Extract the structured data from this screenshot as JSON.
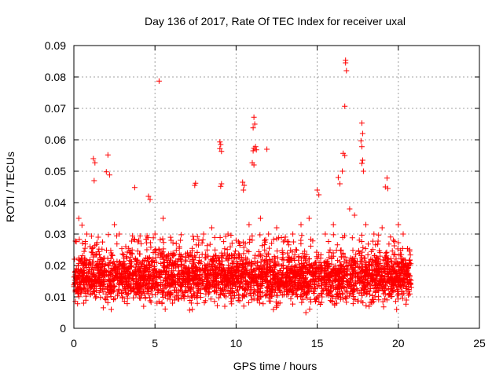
{
  "chart_data": {
    "type": "scatter",
    "title": "Day 136 of 2017, Rate Of TEC Index for receiver uxal",
    "xlabel": "GPS time / hours",
    "ylabel": "ROTI / TECUs",
    "xlim": [
      0,
      25
    ],
    "ylim": [
      0,
      0.09
    ],
    "x_ticks": [
      "0",
      "5",
      "10",
      "15",
      "20",
      "25"
    ],
    "y_ticks": [
      "0",
      "0.01",
      "0.02",
      "0.03",
      "0.04",
      "0.05",
      "0.06",
      "0.07",
      "0.08",
      "0.09"
    ],
    "grid": true,
    "marker": "+",
    "color": "#ff0000",
    "data_x_range": [
      0,
      20.8
    ],
    "typical_band": [
      0.005,
      0.03
    ],
    "series": [
      {
        "points": [
          [
            5.25,
            0.0787
          ],
          [
            16.75,
            0.0853
          ],
          [
            16.75,
            0.0845
          ],
          [
            16.8,
            0.082
          ],
          [
            16.7,
            0.0707
          ],
          [
            11.1,
            0.0672
          ],
          [
            11.15,
            0.065
          ],
          [
            11.05,
            0.0638
          ],
          [
            17.75,
            0.0653
          ],
          [
            17.8,
            0.062
          ],
          [
            17.7,
            0.0597
          ],
          [
            17.75,
            0.0578
          ],
          [
            9.0,
            0.0593
          ],
          [
            9.05,
            0.0585
          ],
          [
            9.0,
            0.0572
          ],
          [
            9.1,
            0.0563
          ],
          [
            11.2,
            0.0578
          ],
          [
            11.1,
            0.0573
          ],
          [
            11.25,
            0.0568
          ],
          [
            11.05,
            0.0565
          ],
          [
            11.9,
            0.057
          ],
          [
            2.1,
            0.0552
          ],
          [
            2.0,
            0.0498
          ],
          [
            2.2,
            0.0488
          ],
          [
            1.2,
            0.054
          ],
          [
            1.3,
            0.0527
          ],
          [
            1.25,
            0.047
          ],
          [
            16.6,
            0.0557
          ],
          [
            16.7,
            0.055
          ],
          [
            16.55,
            0.05
          ],
          [
            11.0,
            0.0527
          ],
          [
            11.1,
            0.052
          ],
          [
            17.8,
            0.0535
          ],
          [
            17.75,
            0.0525
          ],
          [
            17.85,
            0.05
          ],
          [
            19.3,
            0.0478
          ],
          [
            19.2,
            0.045
          ],
          [
            19.35,
            0.0445
          ],
          [
            7.5,
            0.0462
          ],
          [
            7.45,
            0.0455
          ],
          [
            10.4,
            0.0465
          ],
          [
            10.5,
            0.0455
          ],
          [
            10.45,
            0.044
          ],
          [
            3.75,
            0.0448
          ],
          [
            4.6,
            0.042
          ],
          [
            4.7,
            0.041
          ],
          [
            9.1,
            0.046
          ],
          [
            9.05,
            0.0452
          ],
          [
            15.0,
            0.044
          ],
          [
            15.1,
            0.0425
          ],
          [
            16.3,
            0.048
          ],
          [
            16.4,
            0.046
          ],
          [
            0.3,
            0.035
          ],
          [
            0.5,
            0.0328
          ],
          [
            0.8,
            0.03
          ],
          [
            1.0,
            0.026
          ],
          [
            1.5,
            0.029
          ],
          [
            2.5,
            0.033
          ],
          [
            2.8,
            0.03
          ],
          [
            3.2,
            0.026
          ],
          [
            3.5,
            0.024
          ],
          [
            4.0,
            0.028
          ],
          [
            4.5,
            0.025
          ],
          [
            5.0,
            0.03
          ],
          [
            5.5,
            0.035
          ],
          [
            6.0,
            0.028
          ],
          [
            6.5,
            0.026
          ],
          [
            7.0,
            0.024
          ],
          [
            7.7,
            0.028
          ],
          [
            8.0,
            0.03
          ],
          [
            8.5,
            0.032
          ],
          [
            9.5,
            0.03
          ],
          [
            10.0,
            0.028
          ],
          [
            10.8,
            0.033
          ],
          [
            11.5,
            0.035
          ],
          [
            12.0,
            0.03
          ],
          [
            12.5,
            0.032
          ],
          [
            13.0,
            0.028
          ],
          [
            13.5,
            0.03
          ],
          [
            14.0,
            0.033
          ],
          [
            14.5,
            0.035
          ],
          [
            15.5,
            0.03
          ],
          [
            16.0,
            0.033
          ],
          [
            17.0,
            0.038
          ],
          [
            17.3,
            0.036
          ],
          [
            18.0,
            0.033
          ],
          [
            18.5,
            0.03
          ],
          [
            19.0,
            0.032
          ],
          [
            19.7,
            0.028
          ],
          [
            20.0,
            0.033
          ],
          [
            20.3,
            0.03
          ],
          [
            20.7,
            0.025
          ],
          [
            0.1,
            0.012
          ],
          [
            0.6,
            0.008
          ],
          [
            1.1,
            0.015
          ],
          [
            2.3,
            0.006
          ],
          [
            3.0,
            0.01
          ],
          [
            3.8,
            0.014
          ],
          [
            4.3,
            0.007
          ],
          [
            5.2,
            0.012
          ],
          [
            6.2,
            0.009
          ],
          [
            7.3,
            0.006
          ],
          [
            8.3,
            0.011
          ],
          [
            9.3,
            0.007
          ],
          [
            10.2,
            0.013
          ],
          [
            11.3,
            0.009
          ],
          [
            12.3,
            0.006
          ],
          [
            13.3,
            0.012
          ],
          [
            14.3,
            0.005
          ],
          [
            15.3,
            0.01
          ],
          [
            16.2,
            0.008
          ],
          [
            17.2,
            0.012
          ],
          [
            18.2,
            0.007
          ],
          [
            19.1,
            0.011
          ],
          [
            19.9,
            0.006
          ],
          [
            20.5,
            0.009
          ],
          [
            20.8,
            0.013
          ]
        ]
      }
    ]
  }
}
